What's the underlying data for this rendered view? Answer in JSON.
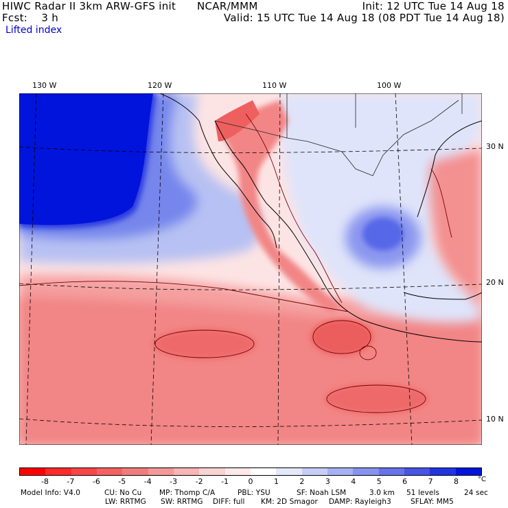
{
  "header": {
    "title": "HIWC Radar II 3km ARW-GFS init",
    "org": "NCAR/MMM",
    "init": "Init: 12 UTC Tue 14 Aug 18",
    "fcst": "Fcst:    3 h",
    "valid": "Valid: 15 UTC Tue 14 Aug 18 (08 PDT Tue 14 Aug 18)",
    "field": "Lifted index"
  },
  "map": {
    "lon_labels": [
      "130 W",
      "120 W",
      "110 W",
      "100 W"
    ],
    "lat_labels": [
      "30 N",
      "20 N",
      "10 N"
    ]
  },
  "colorbar": {
    "ticks": [
      "-8",
      "-7",
      "-6",
      "-5",
      "-4",
      "-3",
      "-2",
      "-1",
      "0",
      "1",
      "2",
      "3",
      "4",
      "5",
      "6",
      "7",
      "8"
    ],
    "unit": "°C",
    "colors": [
      "#ff0000",
      "#ff2a2a",
      "#f84646",
      "#f46262",
      "#f27c7c",
      "#f49898",
      "#f7b5b5",
      "#fad3d3",
      "#fde9e9",
      "#ffffff",
      "#e4e8fb",
      "#c6cef7",
      "#a6b0f3",
      "#8793ef",
      "#6673ea",
      "#4755e6",
      "#2234e0",
      "#0014db"
    ]
  },
  "model_info": {
    "line1": [
      "Model Info: V4.0",
      "CU: No Cu",
      "MP: Thomp C/A",
      "PBL: YSU",
      "SF: Noah LSM",
      "3.0 km",
      "51 levels",
      "24 sec"
    ],
    "line2": [
      "LW: RRTMG",
      "SW: RRTMG",
      "DIFF: full",
      "KM: 2D Smagor",
      "DAMP: Rayleigh3",
      "SFLAY: MM5"
    ]
  }
}
